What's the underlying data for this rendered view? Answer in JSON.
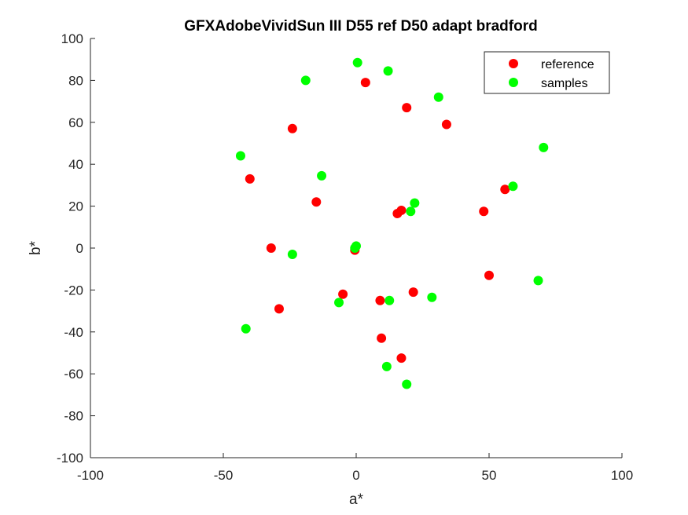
{
  "chart_data": {
    "type": "scatter",
    "title": "GFXAdobeVividSun III D55 ref D50 adapt bradford",
    "xlabel": "a*",
    "ylabel": "b*",
    "xlim": [
      -100,
      100
    ],
    "ylim": [
      -100,
      100
    ],
    "xticks": [
      -100,
      -50,
      0,
      50,
      100
    ],
    "yticks": [
      -100,
      -80,
      -60,
      -40,
      -20,
      0,
      20,
      40,
      60,
      80,
      100
    ],
    "grid": false,
    "legend_position": "top-right",
    "series": [
      {
        "name": "reference",
        "color": "#ff0000",
        "points": [
          {
            "x": 3.5,
            "y": 79
          },
          {
            "x": 19,
            "y": 67
          },
          {
            "x": 34,
            "y": 59
          },
          {
            "x": -24,
            "y": 57
          },
          {
            "x": -40,
            "y": 33
          },
          {
            "x": -15,
            "y": 22
          },
          {
            "x": 56,
            "y": 28
          },
          {
            "x": 48,
            "y": 17.5
          },
          {
            "x": 17,
            "y": 18
          },
          {
            "x": 15.5,
            "y": 16.5
          },
          {
            "x": -32,
            "y": 0
          },
          {
            "x": -0.5,
            "y": -1
          },
          {
            "x": 50,
            "y": -13
          },
          {
            "x": -5,
            "y": -22
          },
          {
            "x": 9,
            "y": -25
          },
          {
            "x": 21.5,
            "y": -21
          },
          {
            "x": -29,
            "y": -29
          },
          {
            "x": 9.5,
            "y": -43
          },
          {
            "x": 17,
            "y": -52.5
          }
        ]
      },
      {
        "name": "samples",
        "color": "#00ff00",
        "points": [
          {
            "x": 0.5,
            "y": 88.5
          },
          {
            "x": 12,
            "y": 84.5
          },
          {
            "x": -19,
            "y": 80
          },
          {
            "x": 31,
            "y": 72
          },
          {
            "x": 70.5,
            "y": 48
          },
          {
            "x": -43.5,
            "y": 44
          },
          {
            "x": -13,
            "y": 34.5
          },
          {
            "x": 59,
            "y": 29.5
          },
          {
            "x": 22,
            "y": 21.5
          },
          {
            "x": 20.5,
            "y": 17.5
          },
          {
            "x": 0,
            "y": 1
          },
          {
            "x": -0.5,
            "y": 0
          },
          {
            "x": -24,
            "y": -3
          },
          {
            "x": 68.5,
            "y": -15.5
          },
          {
            "x": 28.5,
            "y": -23.5
          },
          {
            "x": -6.5,
            "y": -26
          },
          {
            "x": 12.5,
            "y": -25
          },
          {
            "x": -41.5,
            "y": -38.5
          },
          {
            "x": 11.5,
            "y": -56.5
          },
          {
            "x": 19,
            "y": -65
          }
        ]
      }
    ]
  }
}
